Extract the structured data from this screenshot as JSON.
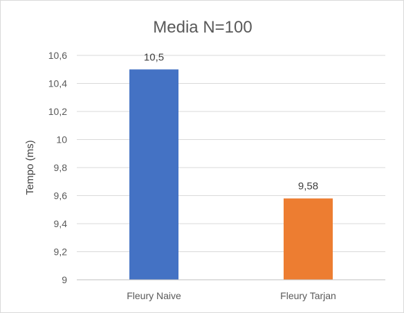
{
  "chart_data": {
    "type": "bar",
    "title": "Media N=100",
    "xlabel": "",
    "ylabel": "Tempo (ms)",
    "categories": [
      "Fleury Naive",
      "Fleury Tarjan"
    ],
    "values": [
      10.5,
      9.58
    ],
    "data_labels": [
      "10,5",
      "9,58"
    ],
    "colors": [
      "#4472c4",
      "#ed7d31"
    ],
    "ylim": [
      9,
      10.6
    ],
    "yticks": [
      9,
      9.2,
      9.4,
      9.6,
      9.8,
      10,
      10.2,
      10.4,
      10.6
    ],
    "ytick_labels": [
      "9",
      "9,2",
      "9,4",
      "9,6",
      "9,8",
      "10",
      "10,2",
      "10,4",
      "10,6"
    ],
    "grid": true,
    "legend": "none"
  }
}
